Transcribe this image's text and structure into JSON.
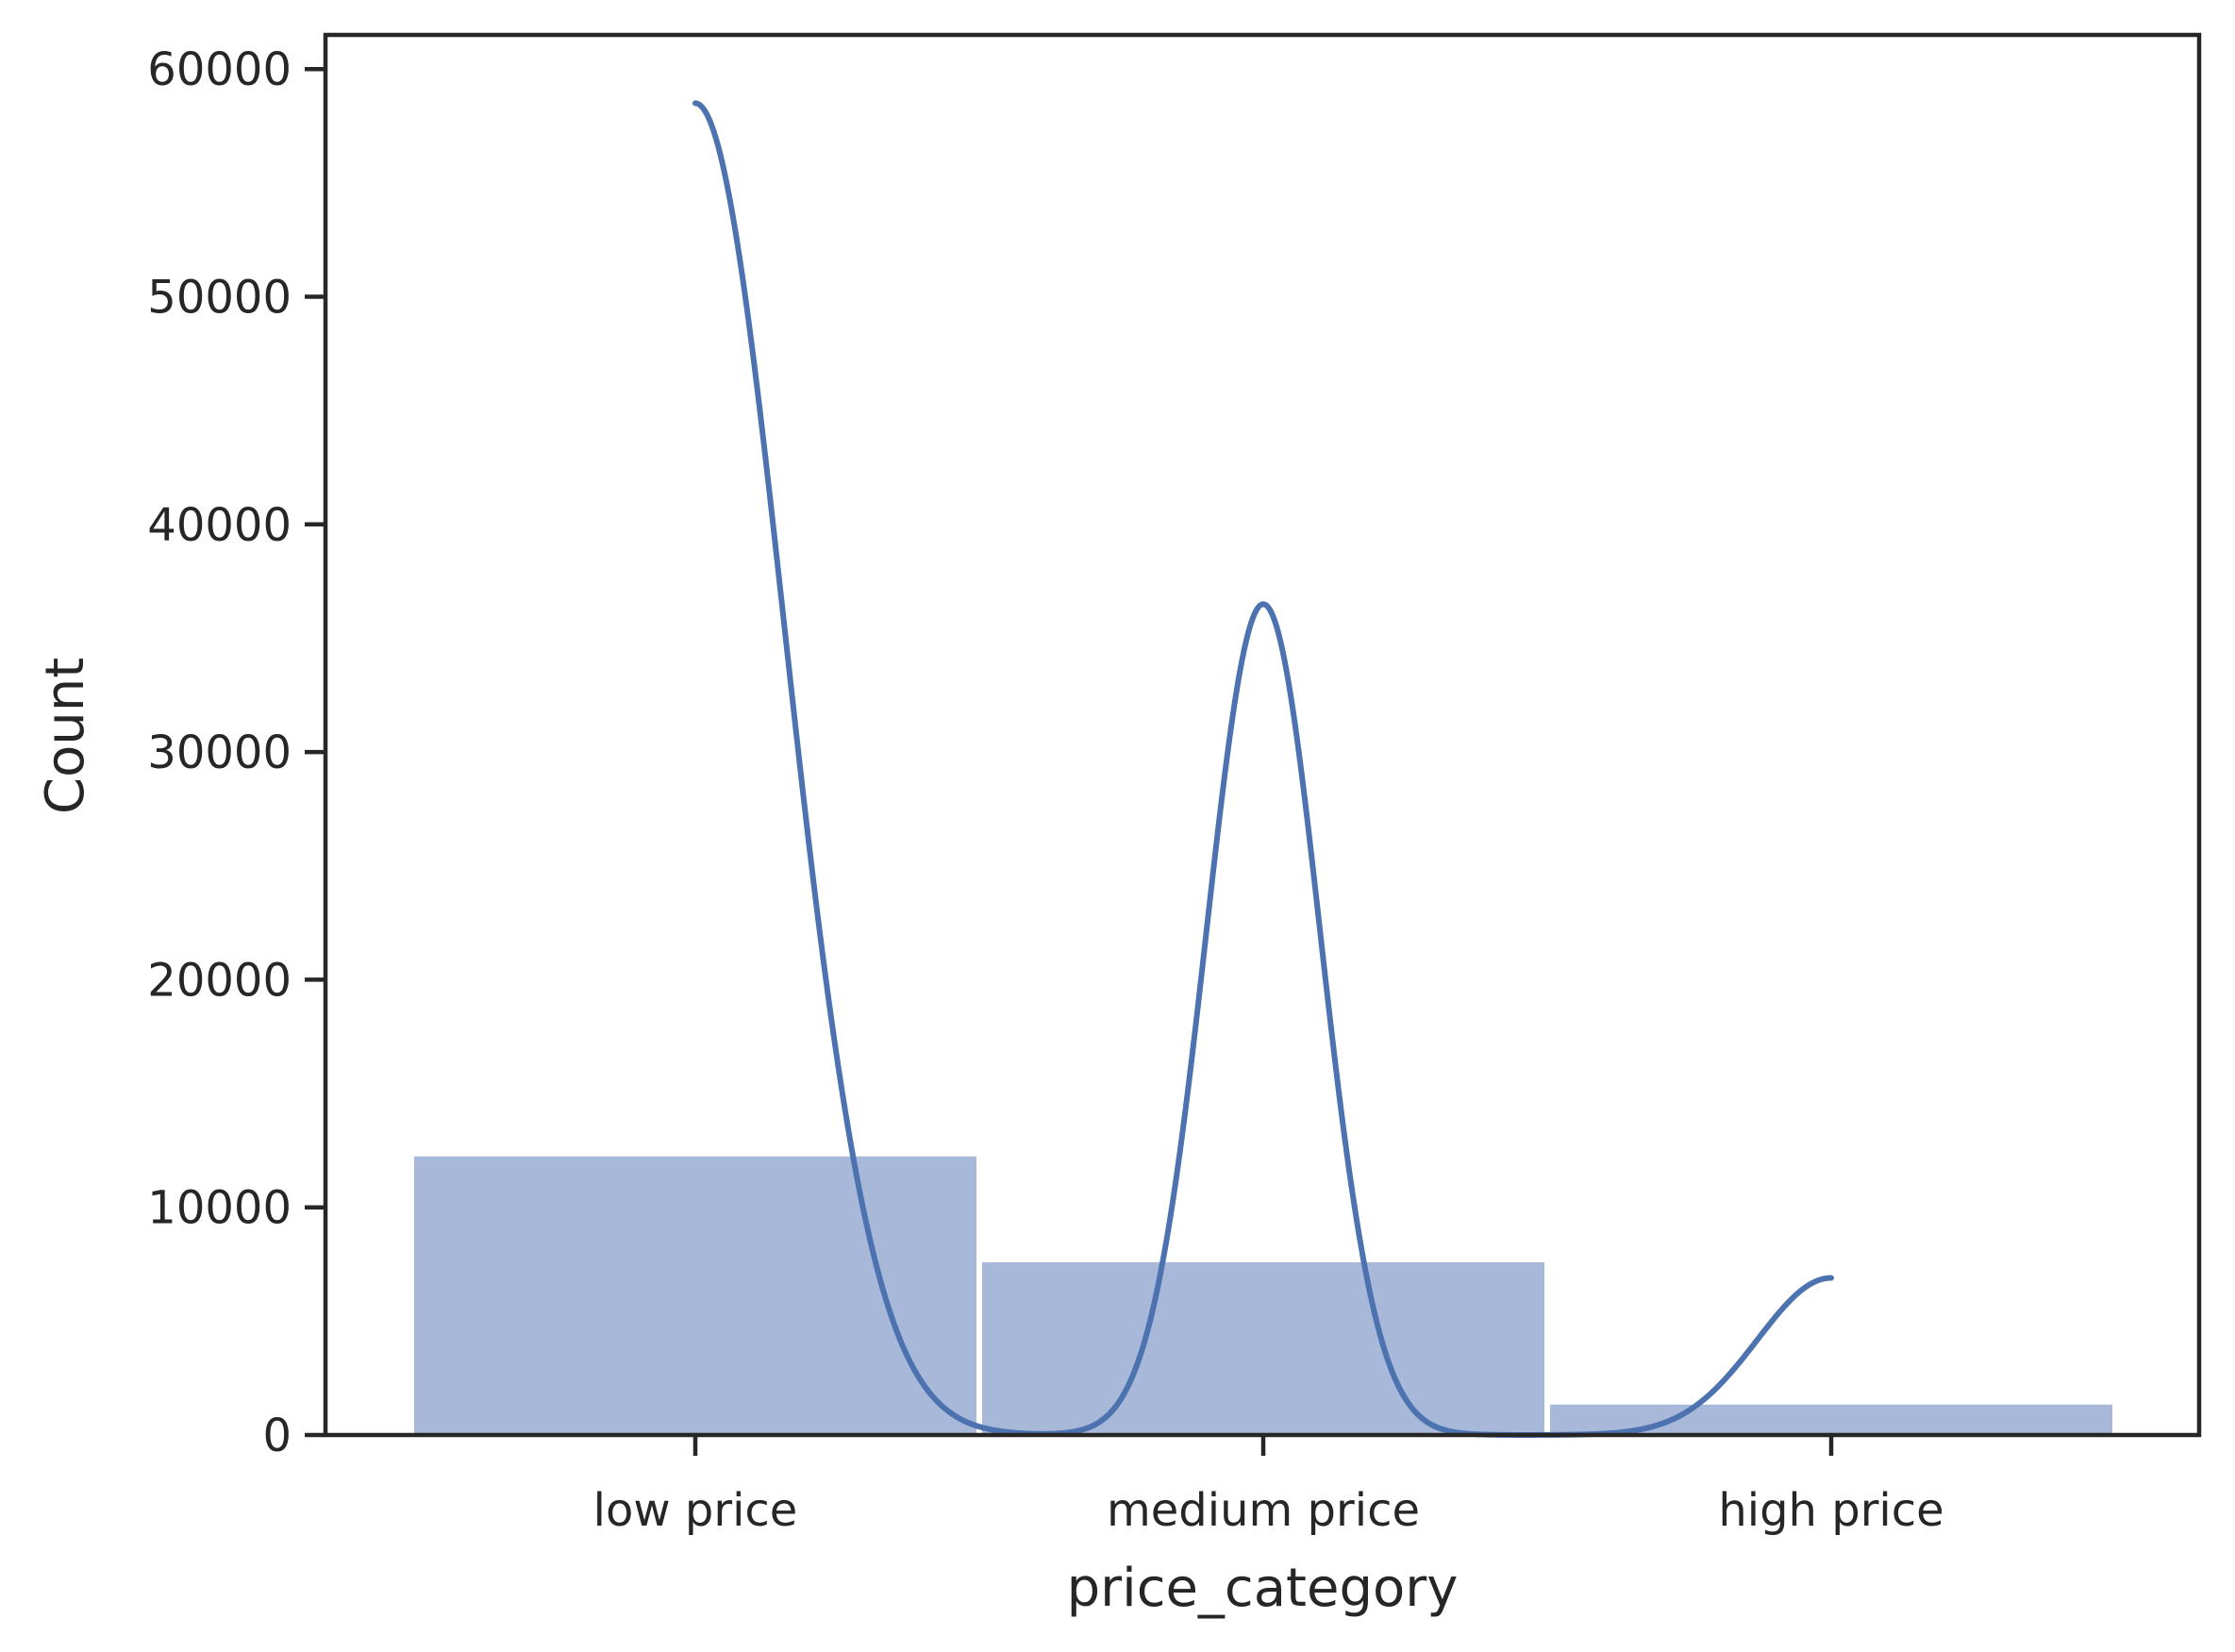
{
  "chart_data": {
    "type": "bar",
    "categories": [
      "low price",
      "medium price",
      "high price"
    ],
    "values": [
      12300,
      7650,
      1400
    ],
    "xlabel": "price_category",
    "ylabel": "Count",
    "ylim": [
      0,
      61500
    ],
    "yticks": [
      0,
      10000,
      20000,
      30000,
      40000,
      50000,
      60000
    ],
    "grid": false,
    "kde": {
      "peaks": [
        {
          "x": 0.0,
          "y": 58500,
          "side": "right",
          "sigma": 0.157
        },
        {
          "x": 1.0,
          "y": 36500,
          "side": "both",
          "sigma": 0.1
        },
        {
          "x": 2.0,
          "y": 6900,
          "side": "left",
          "sigma": 0.13
        }
      ],
      "color": "#4c72b0"
    },
    "bar_color": "#a7b8d8"
  }
}
